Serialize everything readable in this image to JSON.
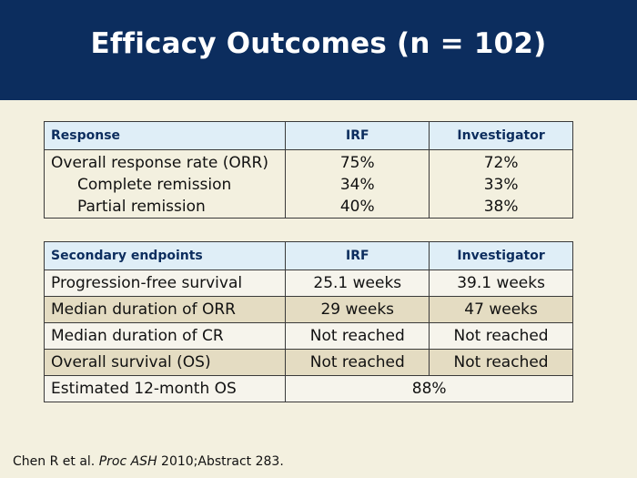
{
  "title": "Efficacy Outcomes (n = 102)",
  "response_table": {
    "headers": [
      "Response",
      "IRF",
      "Investigator"
    ],
    "rows": [
      {
        "label": "Overall response rate (ORR)",
        "irf": "75%",
        "investigator": "72%"
      },
      {
        "label": "Complete remission",
        "irf": "34%",
        "investigator": "33%"
      },
      {
        "label": "Partial remission",
        "irf": "40%",
        "investigator": "38%"
      }
    ]
  },
  "secondary_table": {
    "headers": [
      "Secondary endpoints",
      "IRF",
      "Investigator"
    ],
    "rows": [
      {
        "label": "Progression-free survival",
        "irf": "25.1 weeks",
        "investigator": "39.1 weeks"
      },
      {
        "label": "Median duration of ORR",
        "irf": "29 weeks",
        "investigator": "47 weeks"
      },
      {
        "label": "Median duration of CR",
        "irf": "Not reached",
        "investigator": "Not reached"
      },
      {
        "label": "Overall survival (OS)",
        "irf": "Not reached",
        "investigator": "Not reached"
      },
      {
        "label": "Estimated 12-month OS",
        "combined": "88%"
      }
    ]
  },
  "footer": {
    "authors": "Chen R et al.",
    "journal": "Proc ASH",
    "citation": "2010;Abstract 283."
  }
}
